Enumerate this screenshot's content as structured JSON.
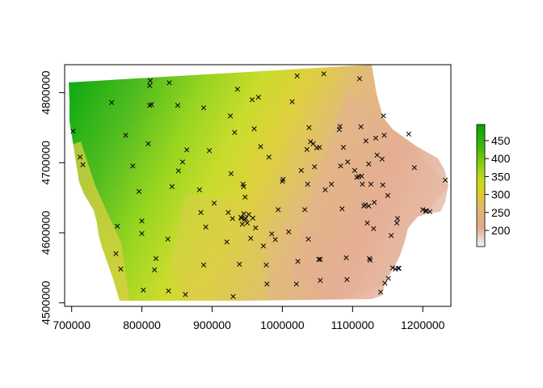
{
  "chart_data": {
    "type": "raster-map",
    "crs_note": "",
    "xlim": [
      690000,
      1240000
    ],
    "ylim": [
      4495000,
      4840000
    ],
    "x_ticks": [
      {
        "value": 700000,
        "label": "700000"
      },
      {
        "value": 800000,
        "label": "800000"
      },
      {
        "value": 900000,
        "label": "900000"
      },
      {
        "value": 1000000,
        "label": "1000000"
      },
      {
        "value": 1100000,
        "label": "1100000"
      },
      {
        "value": 1200000,
        "label": "1200000"
      }
    ],
    "y_ticks": [
      {
        "value": 4500000,
        "label": "4500000"
      },
      {
        "value": 4600000,
        "label": "4600000"
      },
      {
        "value": 4700000,
        "label": "4700000"
      },
      {
        "value": 4800000,
        "label": "4800000"
      }
    ],
    "legend": {
      "placement": "right",
      "range": [
        155,
        495
      ],
      "ticks": [
        {
          "value": 200,
          "label": "200"
        },
        {
          "value": 250,
          "label": "250"
        },
        {
          "value": 300,
          "label": "300"
        },
        {
          "value": 350,
          "label": "350"
        },
        {
          "value": 400,
          "label": "400"
        },
        {
          "value": 450,
          "label": "450"
        }
      ],
      "color_stops": [
        {
          "value": 155,
          "color": "#f2f2f2"
        },
        {
          "value": 210,
          "color": "#e3a98a"
        },
        {
          "value": 260,
          "color": "#e0b66f"
        },
        {
          "value": 300,
          "color": "#dccc2f"
        },
        {
          "value": 340,
          "color": "#c6d91a"
        },
        {
          "value": 380,
          "color": "#8ed20e"
        },
        {
          "value": 430,
          "color": "#46b80c"
        },
        {
          "value": 495,
          "color": "#00a600"
        }
      ]
    },
    "points_marker": "×",
    "points": [
      [
        702000,
        4745000
      ],
      [
        712000,
        4708000
      ],
      [
        716000,
        4697000
      ],
      [
        757000,
        4786000
      ],
      [
        765000,
        4609000
      ],
      [
        763000,
        4570000
      ],
      [
        770000,
        4548000
      ],
      [
        777000,
        4739000
      ],
      [
        787000,
        4695000
      ],
      [
        796000,
        4659000
      ],
      [
        800000,
        4617000
      ],
      [
        800000,
        4599000
      ],
      [
        802000,
        4518000
      ],
      [
        809000,
        4727000
      ],
      [
        811000,
        4782000
      ],
      [
        811000,
        4810000
      ],
      [
        812000,
        4817000
      ],
      [
        814000,
        4783000
      ],
      [
        818000,
        4547000
      ],
      [
        820000,
        4563000
      ],
      [
        837000,
        4591000
      ],
      [
        838000,
        4517000
      ],
      [
        839000,
        4814000
      ],
      [
        843000,
        4666000
      ],
      [
        851000,
        4782000
      ],
      [
        852000,
        4688000
      ],
      [
        858000,
        4701000
      ],
      [
        862000,
        4512000
      ],
      [
        864000,
        4718000
      ],
      [
        882000,
        4661000
      ],
      [
        884000,
        4629000
      ],
      [
        888000,
        4778000
      ],
      [
        888000,
        4554000
      ],
      [
        891000,
        4608000
      ],
      [
        896000,
        4717000
      ],
      [
        903000,
        4642000
      ],
      [
        921000,
        4587000
      ],
      [
        923000,
        4629000
      ],
      [
        926000,
        4767000
      ],
      [
        927000,
        4684000
      ],
      [
        929000,
        4620000
      ],
      [
        930000,
        4509000
      ],
      [
        932000,
        4743000
      ],
      [
        936000,
        4805000
      ],
      [
        939000,
        4555000
      ],
      [
        941000,
        4622000
      ],
      [
        942000,
        4621000
      ],
      [
        943000,
        4612000
      ],
      [
        944000,
        4669000
      ],
      [
        945000,
        4666000
      ],
      [
        945000,
        4627000
      ],
      [
        946000,
        4619000
      ],
      [
        947000,
        4651000
      ],
      [
        948000,
        4620000
      ],
      [
        950000,
        4614000
      ],
      [
        952000,
        4626000
      ],
      [
        955000,
        4592000
      ],
      [
        957000,
        4790000
      ],
      [
        958000,
        4621000
      ],
      [
        960000,
        4748000
      ],
      [
        962000,
        4607000
      ],
      [
        966000,
        4793000
      ],
      [
        969000,
        4723000
      ],
      [
        973000,
        4581000
      ],
      [
        977000,
        4554000
      ],
      [
        978000,
        4527000
      ],
      [
        981000,
        4708000
      ],
      [
        985000,
        4598000
      ],
      [
        990000,
        4590000
      ],
      [
        994000,
        4633000
      ],
      [
        1000000,
        4673000
      ],
      [
        1001000,
        4676000
      ],
      [
        1009000,
        4601000
      ],
      [
        1014000,
        4787000
      ],
      [
        1020000,
        4527000
      ],
      [
        1021000,
        4824000
      ],
      [
        1022000,
        4559000
      ],
      [
        1027000,
        4689000
      ],
      [
        1032000,
        4633000
      ],
      [
        1035000,
        4719000
      ],
      [
        1036000,
        4669000
      ],
      [
        1037000,
        4591000
      ],
      [
        1038000,
        4750000
      ],
      [
        1040000,
        4730000
      ],
      [
        1044000,
        4727000
      ],
      [
        1046000,
        4694000
      ],
      [
        1049000,
        4721000
      ],
      [
        1052000,
        4562000
      ],
      [
        1053000,
        4722000
      ],
      [
        1054000,
        4562000
      ],
      [
        1054000,
        4532000
      ],
      [
        1059000,
        4827000
      ],
      [
        1061000,
        4661000
      ],
      [
        1070000,
        4669000
      ],
      [
        1081000,
        4747000
      ],
      [
        1082000,
        4752000
      ],
      [
        1083000,
        4695000
      ],
      [
        1085000,
        4634000
      ],
      [
        1087000,
        4722000
      ],
      [
        1091000,
        4564000
      ],
      [
        1092000,
        4533000
      ],
      [
        1093000,
        4701000
      ],
      [
        1103000,
        4689000
      ],
      [
        1106000,
        4679000
      ],
      [
        1109000,
        4680000
      ],
      [
        1110000,
        4820000
      ],
      [
        1112000,
        4751000
      ],
      [
        1113000,
        4681000
      ],
      [
        1114000,
        4669000
      ],
      [
        1116000,
        4638000
      ],
      [
        1118000,
        4640000
      ],
      [
        1119000,
        4731000
      ],
      [
        1121000,
        4614000
      ],
      [
        1123000,
        4698000
      ],
      [
        1123000,
        4638000
      ],
      [
        1124000,
        4563000
      ],
      [
        1125000,
        4561000
      ],
      [
        1126000,
        4669000
      ],
      [
        1130000,
        4606000
      ],
      [
        1131000,
        4643000
      ],
      [
        1133000,
        4735000
      ],
      [
        1135000,
        4711000
      ],
      [
        1140000,
        4515000
      ],
      [
        1142000,
        4705000
      ],
      [
        1143000,
        4668000
      ],
      [
        1144000,
        4767000
      ],
      [
        1145000,
        4739000
      ],
      [
        1146000,
        4528000
      ],
      [
        1150000,
        4653000
      ],
      [
        1151000,
        4535000
      ],
      [
        1155000,
        4596000
      ],
      [
        1157000,
        4550000
      ],
      [
        1161000,
        4548000
      ],
      [
        1163000,
        4614000
      ],
      [
        1164000,
        4620000
      ],
      [
        1165000,
        4549000
      ],
      [
        1166000,
        4549000
      ],
      [
        1180000,
        4741000
      ],
      [
        1188000,
        4693000
      ],
      [
        1200000,
        4633000
      ],
      [
        1204000,
        4631000
      ],
      [
        1210000,
        4630000
      ],
      [
        1232000,
        4675000
      ],
      [
        1205000,
        4631000
      ]
    ]
  }
}
